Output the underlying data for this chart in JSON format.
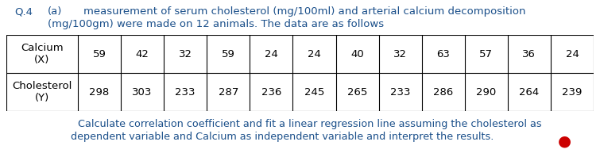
{
  "title_prefix": "Q.4",
  "title_label": "(a)",
  "title_text_line1": "measurement of serum cholesterol (mg/100ml) and arterial calcium decomposition",
  "title_text_line2": "(mg/100gm) were made on 12 animals. The data are as follows",
  "calcium_label": "Calcium\n(X)",
  "cholesterol_label": "Cholesterol\n(Y)",
  "calcium_values": [
    59,
    42,
    32,
    59,
    24,
    24,
    40,
    32,
    63,
    57,
    36,
    24
  ],
  "cholesterol_values": [
    298,
    303,
    233,
    287,
    236,
    245,
    265,
    233,
    286,
    290,
    264,
    239
  ],
  "footer_line1": "Calculate correlation coefficient and fit a linear regression line assuming the cholesterol as",
  "footer_line2": "dependent variable and Calcium as independent variable and interpret the results.",
  "text_color": "#1a4f8a",
  "table_text_color": "#000000",
  "bg_color": "#ffffff",
  "font_size_header": 9.5,
  "font_size_table": 9.5,
  "font_size_footer": 9.2,
  "red_dot_color": "#cc0000",
  "fig_width": 7.55,
  "fig_height": 1.98,
  "dpi": 100
}
